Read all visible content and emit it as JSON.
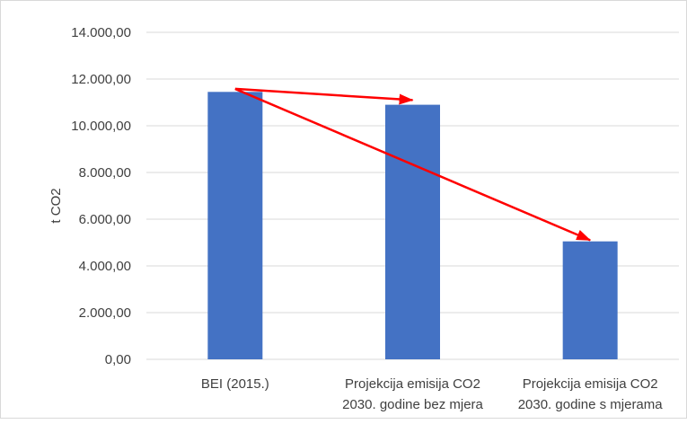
{
  "chart_data": {
    "type": "bar",
    "title": "",
    "xlabel": "",
    "ylabel": "t CO2",
    "ylim": [
      0,
      14000
    ],
    "ytick_step": 2000,
    "yticks": [
      "0,00",
      "2.000,00",
      "4.000,00",
      "6.000,00",
      "8.000,00",
      "10.000,00",
      "12.000,00",
      "14.000,00"
    ],
    "grid": true,
    "legend": "none",
    "categories": [
      [
        "BEI (2015.)"
      ],
      [
        "Projekcija emisija CO2",
        "2030. godine bez mjera"
      ],
      [
        "Projekcija emisija CO2",
        "2030. godine s mjerama"
      ]
    ],
    "series": [
      {
        "values": [
          11450,
          10900,
          5050
        ]
      }
    ],
    "annotations": [
      {
        "type": "arrow",
        "from": {
          "category": 0,
          "value": 11580
        },
        "to": {
          "category": 1,
          "value": 11100
        }
      },
      {
        "type": "arrow",
        "from": {
          "category": 0,
          "value": 11580
        },
        "to": {
          "category": 2,
          "value": 5100
        }
      }
    ],
    "colors": {
      "bar": "#4472c4",
      "arrow": "#ff0000",
      "grid": "#d9d9d9"
    }
  }
}
